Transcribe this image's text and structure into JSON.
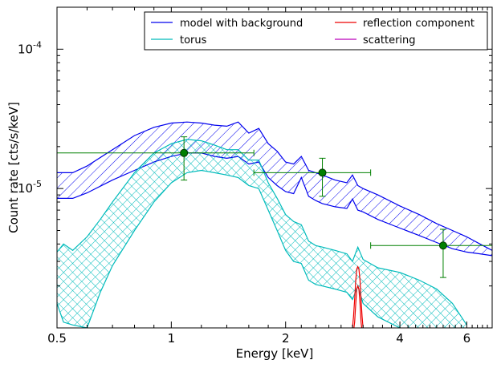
{
  "chart_data": {
    "type": "line",
    "xlabel": "Energy [keV]",
    "ylabel": "Count rate [cts/s/keV]",
    "xscale": "log",
    "yscale": "log",
    "xlim": [
      0.5,
      7.0
    ],
    "ylim": [
      1e-06,
      0.0002
    ],
    "x_ticks": [
      {
        "value": 0.5,
        "label": "0.5"
      },
      {
        "value": 1,
        "label": "1"
      },
      {
        "value": 2,
        "label": "2"
      },
      {
        "value": 4,
        "label": "4"
      },
      {
        "value": 6,
        "label": "6"
      }
    ],
    "y_ticks": [
      {
        "value": 1e-05,
        "base": "10",
        "exp": "-5"
      },
      {
        "value": 0.0001,
        "base": "10",
        "exp": "-4"
      }
    ],
    "legend": {
      "placement": "top-right",
      "columns": 2,
      "entries": [
        {
          "label": "model with background",
          "color": "#0000ee"
        },
        {
          "label": "reflection component",
          "color": "#ee0000"
        },
        {
          "label": "torus",
          "color": "#00bbbb"
        },
        {
          "label": "scattering",
          "color": "#bb00bb"
        }
      ]
    },
    "series": [
      {
        "name": "model with background",
        "color": "#0000ee",
        "hatch": "diagonal",
        "x": [
          0.5,
          0.55,
          0.6,
          0.7,
          0.8,
          0.9,
          1.0,
          1.1,
          1.2,
          1.3,
          1.4,
          1.5,
          1.6,
          1.7,
          1.8,
          1.9,
          2.0,
          2.1,
          2.2,
          2.3,
          2.4,
          2.5,
          2.7,
          2.9,
          3.0,
          3.1,
          3.2,
          3.5,
          4.0,
          4.5,
          5.0,
          5.5,
          6.0,
          6.5,
          7.0
        ],
        "upper": [
          1.3e-05,
          1.3e-05,
          1.45e-05,
          1.9e-05,
          2.4e-05,
          2.75e-05,
          2.95e-05,
          3e-05,
          2.95e-05,
          2.85e-05,
          2.8e-05,
          3e-05,
          2.5e-05,
          2.7e-05,
          2.1e-05,
          1.85e-05,
          1.55e-05,
          1.5e-05,
          1.7e-05,
          1.35e-05,
          1.3e-05,
          1.25e-05,
          1.15e-05,
          1.1e-05,
          1.25e-05,
          1.05e-05,
          1e-05,
          9e-06,
          7.5e-06,
          6.5e-06,
          5.6e-06,
          5e-06,
          4.5e-06,
          4e-06,
          3.6e-06
        ],
        "lower": [
          8.5e-06,
          8.5e-06,
          9.3e-06,
          1.15e-05,
          1.35e-05,
          1.55e-05,
          1.7e-05,
          1.8e-05,
          1.8e-05,
          1.7e-05,
          1.65e-05,
          1.7e-05,
          1.5e-05,
          1.55e-05,
          1.2e-05,
          1.05e-05,
          9.5e-06,
          9.2e-06,
          1.2e-05,
          8.8e-06,
          8.2e-06,
          7.8e-06,
          7.4e-06,
          7.2e-06,
          8.4e-06,
          7e-06,
          6.8e-06,
          6e-06,
          5.2e-06,
          4.6e-06,
          4.1e-06,
          3.7e-06,
          3.5e-06,
          3.4e-06,
          3.3e-06
        ]
      },
      {
        "name": "torus",
        "color": "#00bbbb",
        "hatch": "crosshatch",
        "x": [
          0.5,
          0.52,
          0.55,
          0.6,
          0.65,
          0.7,
          0.8,
          0.9,
          1.0,
          1.1,
          1.2,
          1.3,
          1.4,
          1.5,
          1.6,
          1.7,
          1.8,
          1.9,
          2.0,
          2.1,
          2.2,
          2.3,
          2.4,
          2.5,
          2.7,
          2.9,
          3.0,
          3.1,
          3.2,
          3.5,
          4.0,
          4.5,
          5.0,
          5.5,
          6.0
        ],
        "upper": [
          3.5e-06,
          4e-06,
          3.6e-06,
          4.5e-06,
          6e-06,
          8e-06,
          1.3e-05,
          1.8e-05,
          2.1e-05,
          2.25e-05,
          2.2e-05,
          2.05e-05,
          1.9e-05,
          1.9e-05,
          1.6e-05,
          1.6e-05,
          1.1e-05,
          8.5e-06,
          6.5e-06,
          5.8e-06,
          5.5e-06,
          4.2e-06,
          3.9e-06,
          3.8e-06,
          3.6e-06,
          3.4e-06,
          3e-06,
          3.8e-06,
          3.1e-06,
          2.7e-06,
          2.5e-06,
          2.2e-06,
          1.9e-06,
          1.5e-06,
          1.05e-06
        ],
        "lower": [
          1.5e-06,
          1.1e-06,
          1.05e-06,
          1e-06,
          1.8e-06,
          2.8e-06,
          5e-06,
          8e-06,
          1.1e-05,
          1.3e-05,
          1.35e-05,
          1.3e-05,
          1.25e-05,
          1.2e-05,
          1.05e-05,
          1e-05,
          7e-06,
          5e-06,
          3.6e-06,
          3e-06,
          2.9e-06,
          2.2e-06,
          2.05e-06,
          2e-06,
          1.9e-06,
          1.8e-06,
          1.6e-06,
          2e-06,
          1.5e-06,
          1.2e-06,
          1e-06,
          9e-07,
          8e-07,
          7e-07,
          6e-07
        ]
      },
      {
        "name": "reflection component",
        "color": "#ee0000",
        "x": [
          3.0,
          3.02,
          3.04,
          3.06,
          3.08,
          3.1,
          3.12,
          3.14,
          3.16,
          3.18,
          3.2
        ],
        "upper": [
          1e-06,
          1.2e-06,
          1.6e-06,
          2.2e-06,
          2.65e-06,
          2.75e-06,
          2.65e-06,
          2.2e-06,
          1.6e-06,
          1.2e-06,
          1e-06
        ],
        "lower": [
          9e-07,
          9.5e-07,
          1.1e-06,
          1.5e-06,
          1.9e-06,
          2e-06,
          1.9e-06,
          1.5e-06,
          1.1e-06,
          9.5e-07,
          9e-07
        ]
      }
    ],
    "data_points": {
      "color": "#008000",
      "points": [
        {
          "x": 1.08,
          "y": 1.8e-05,
          "xlo": 0.5,
          "xhi": 1.65,
          "ylo": 1.15e-05,
          "yhi": 2.35e-05
        },
        {
          "x": 2.5,
          "y": 1.3e-05,
          "xlo": 1.65,
          "xhi": 3.35,
          "ylo": 8.8e-06,
          "yhi": 1.65e-05
        },
        {
          "x": 5.2,
          "y": 3.9e-06,
          "xlo": 3.35,
          "xhi": 7.0,
          "ylo": 2.3e-06,
          "yhi": 5.1e-06
        }
      ]
    }
  }
}
